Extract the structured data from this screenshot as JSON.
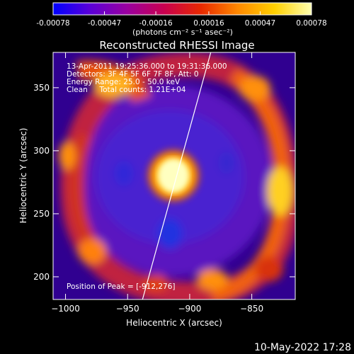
{
  "colorbar": {
    "tick_labels": [
      "-0.00078",
      "-0.00047",
      "-0.00016",
      "0.00016",
      "0.00047",
      "0.00078"
    ],
    "tick_values": [
      -0.00078,
      -0.00047,
      -0.00016,
      0.00016,
      0.00047,
      0.00078
    ],
    "range": [
      -0.00078,
      0.00078
    ],
    "unit_label": "(photons cm⁻² s⁻¹ asec⁻²)",
    "colors": [
      "#0000ff",
      "#5a00d8",
      "#9a00a0",
      "#c80050",
      "#e82800",
      "#ff8800",
      "#ffd000",
      "#ffffb0"
    ]
  },
  "chart_data": {
    "type": "heatmap",
    "title": "Reconstructed RHESSI Image",
    "xlabel": "Heliocentric X (arcsec)",
    "ylabel": "Heliocentric Y (arcsec)",
    "xlim": [
      -1010,
      -815
    ],
    "ylim": [
      182,
      378
    ],
    "x_ticks": [
      -1000,
      -950,
      -900,
      -850
    ],
    "x_tick_labels": [
      "−1000",
      "−950",
      "−900",
      "−850"
    ],
    "y_ticks": [
      200,
      250,
      300,
      350
    ],
    "y_tick_labels": [
      "200",
      "250",
      "300",
      "350"
    ],
    "annotations": [
      "13-Apr-2011 19:25:36.000 to 19:31:36.000",
      "Detectors: 3F 4F 5F 6F 7F 8F, Att: 0",
      "Energy Range: 25.0 - 50.0 keV",
      "Clean     Total counts: 1.21E+04"
    ],
    "peak_label": "Position of Peak = [-912,276]",
    "peak": [
      -912,
      276
    ],
    "limb_line": [
      [
        -938,
        182
      ],
      [
        -883,
        378
      ]
    ]
  },
  "timestamp": "10-May-2022 17:28"
}
